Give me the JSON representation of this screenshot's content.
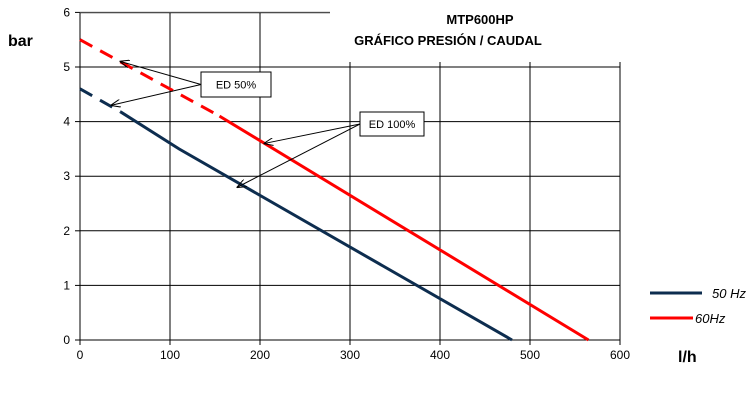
{
  "chart_data": {
    "type": "line",
    "title": "MTP600HP",
    "subtitle": "GRÁFICO  PRESIÓN / CAUDAL",
    "xlabel": "l/h",
    "ylabel": "bar",
    "xlim": [
      0,
      600
    ],
    "ylim": [
      0,
      6.5
    ],
    "x_ticks": [
      0,
      100,
      200,
      300,
      400,
      500,
      600
    ],
    "y_ticks": [
      0,
      1,
      2,
      3,
      4,
      5,
      6
    ],
    "grid": true,
    "legend_position": "right",
    "series": [
      {
        "name": "50 Hz",
        "color": "#0d2d4f",
        "dashed_segment": [
          [
            0,
            4.6
          ],
          [
            45,
            4.18
          ]
        ],
        "solid_segment": [
          [
            45,
            4.18
          ],
          [
            110,
            3.5
          ],
          [
            480,
            0
          ]
        ]
      },
      {
        "name": "60Hz",
        "color": "#ff0000",
        "dashed_segment": [
          [
            0,
            5.5
          ],
          [
            155,
            4.1
          ]
        ],
        "solid_segment": [
          [
            155,
            4.1
          ],
          [
            565,
            0
          ]
        ]
      }
    ],
    "annotations": [
      {
        "text": "ED 50%",
        "arrows_to": [
          [
            45,
            5.1
          ],
          [
            35,
            4.3
          ]
        ]
      },
      {
        "text": "ED 100%",
        "arrows_to": [
          [
            205,
            3.6
          ],
          [
            175,
            2.8
          ]
        ]
      }
    ]
  }
}
